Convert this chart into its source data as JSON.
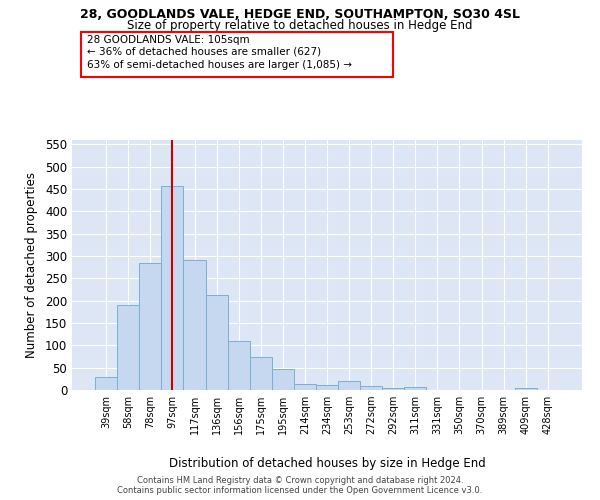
{
  "title1": "28, GOODLANDS VALE, HEDGE END, SOUTHAMPTON, SO30 4SL",
  "title2": "Size of property relative to detached houses in Hedge End",
  "xlabel": "Distribution of detached houses by size in Hedge End",
  "ylabel": "Number of detached properties",
  "footer1": "Contains HM Land Registry data © Crown copyright and database right 2024.",
  "footer2": "Contains public sector information licensed under the Open Government Licence v3.0.",
  "bar_labels": [
    "39sqm",
    "58sqm",
    "78sqm",
    "97sqm",
    "117sqm",
    "136sqm",
    "156sqm",
    "175sqm",
    "195sqm",
    "214sqm",
    "234sqm",
    "253sqm",
    "272sqm",
    "292sqm",
    "311sqm",
    "331sqm",
    "350sqm",
    "370sqm",
    "389sqm",
    "409sqm",
    "428sqm"
  ],
  "bar_values": [
    30,
    191,
    284,
    457,
    291,
    213,
    109,
    74,
    46,
    13,
    12,
    21,
    10,
    5,
    6,
    0,
    0,
    0,
    0,
    5,
    0
  ],
  "bar_color": "#c5d8f0",
  "bar_edgecolor": "#7aafd4",
  "bg_color": "#dce6f5",
  "grid_color": "#ffffff",
  "vline_x": 3,
  "vline_color": "#cc0000",
  "annotation_line1": "28 GOODLANDS VALE: 105sqm",
  "annotation_line2": "← 36% of detached houses are smaller (627)",
  "annotation_line3": "63% of semi-detached houses are larger (1,085) →",
  "ylim": [
    0,
    560
  ],
  "yticks": [
    0,
    50,
    100,
    150,
    200,
    250,
    300,
    350,
    400,
    450,
    500,
    550
  ],
  "figwidth": 6.0,
  "figheight": 5.0,
  "dpi": 100
}
